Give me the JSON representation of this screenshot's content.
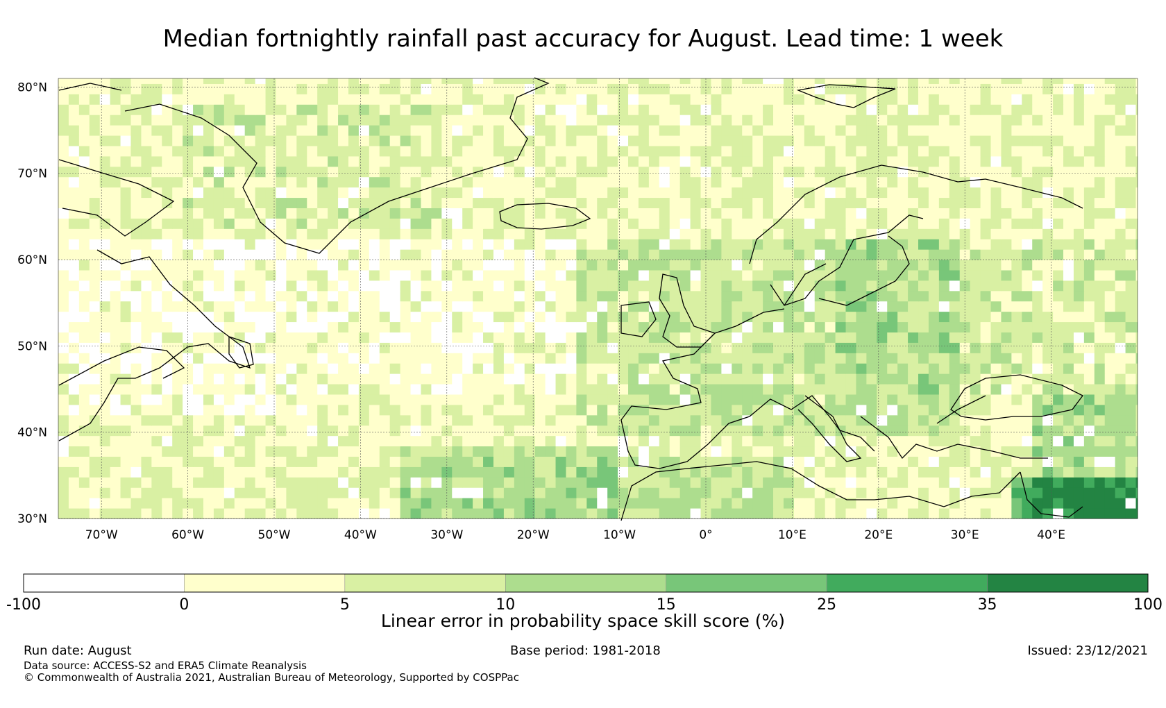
{
  "title": "Median fortnightly rainfall past accuracy for August. Lead time: 1 week",
  "map": {
    "lat_ticks": [
      "80°N",
      "70°N",
      "60°N",
      "50°N",
      "40°N",
      "30°N"
    ],
    "lon_ticks": [
      "70°W",
      "60°W",
      "50°W",
      "40°W",
      "30°W",
      "20°W",
      "10°W",
      "0°",
      "10°E",
      "20°E",
      "30°E",
      "40°E"
    ],
    "lat_range": [
      30,
      81
    ],
    "lon_range": [
      -75,
      50
    ]
  },
  "colorbar": {
    "label": "Linear error in probability space skill score (%)",
    "bounds": [
      "-100",
      "0",
      "5",
      "10",
      "15",
      "25",
      "35",
      "100"
    ],
    "colors": [
      "#ffffff",
      "#ffffcc",
      "#d9f0a3",
      "#addd8e",
      "#78c679",
      "#41ab5d",
      "#238443"
    ]
  },
  "footer": {
    "run_date": "Run date: August",
    "base_period": "Base period: 1981-2018",
    "issued": "Issued: 23/12/2021",
    "data_source": "Data source: ACCESS-S2 and ERA5 Climate Reanalysis",
    "copyright": "© Commonwealth of Australia 2021, Australian Bureau of Meteorology, Supported by COSPPac"
  }
}
